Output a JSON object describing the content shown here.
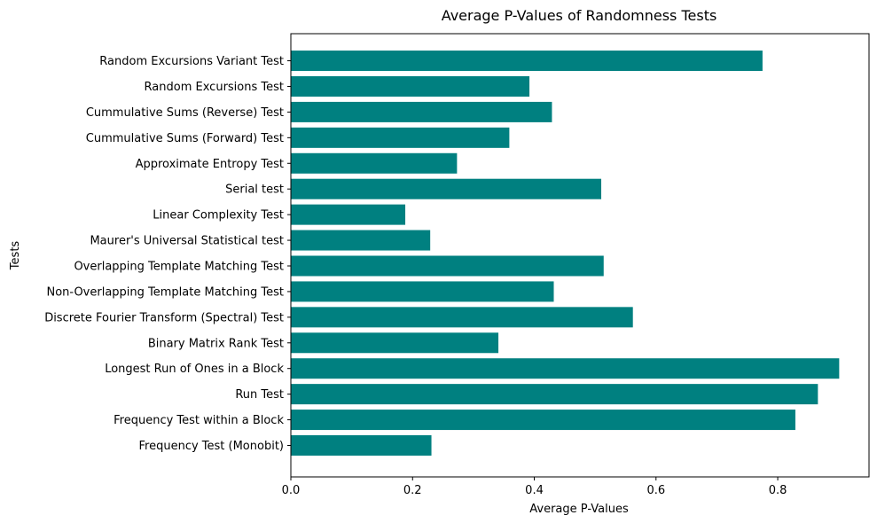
{
  "chart_data": {
    "type": "bar",
    "orientation": "horizontal",
    "title": "Average P-Values of Randomness Tests",
    "xlabel": "Average P-Values",
    "ylabel": "Tests",
    "xlim": [
      0,
      0.95
    ],
    "xticks": [
      0.0,
      0.2,
      0.4,
      0.6,
      0.8
    ],
    "xtick_labels": [
      "0.0",
      "0.2",
      "0.4",
      "0.6",
      "0.8"
    ],
    "grid": false,
    "bar_color": "#008080",
    "categories": [
      "Frequency Test (Monobit)",
      "Frequency Test within a Block",
      "Run Test",
      "Longest Run of Ones in a Block",
      "Binary Matrix Rank Test",
      "Discrete Fourier Transform (Spectral) Test",
      "Non-Overlapping Template Matching Test",
      "Overlapping Template Matching Test",
      "Maurer's Universal Statistical test",
      "Linear Complexity Test",
      "Serial test",
      "Approximate Entropy Test",
      "Cummulative Sums (Forward) Test",
      "Cummulative Sums (Reverse) Test",
      "Random Excursions Test",
      "Random Excursions Variant Test"
    ],
    "values": [
      0.231,
      0.829,
      0.866,
      0.901,
      0.341,
      0.562,
      0.432,
      0.514,
      0.229,
      0.188,
      0.51,
      0.273,
      0.359,
      0.429,
      0.392,
      0.775
    ]
  }
}
